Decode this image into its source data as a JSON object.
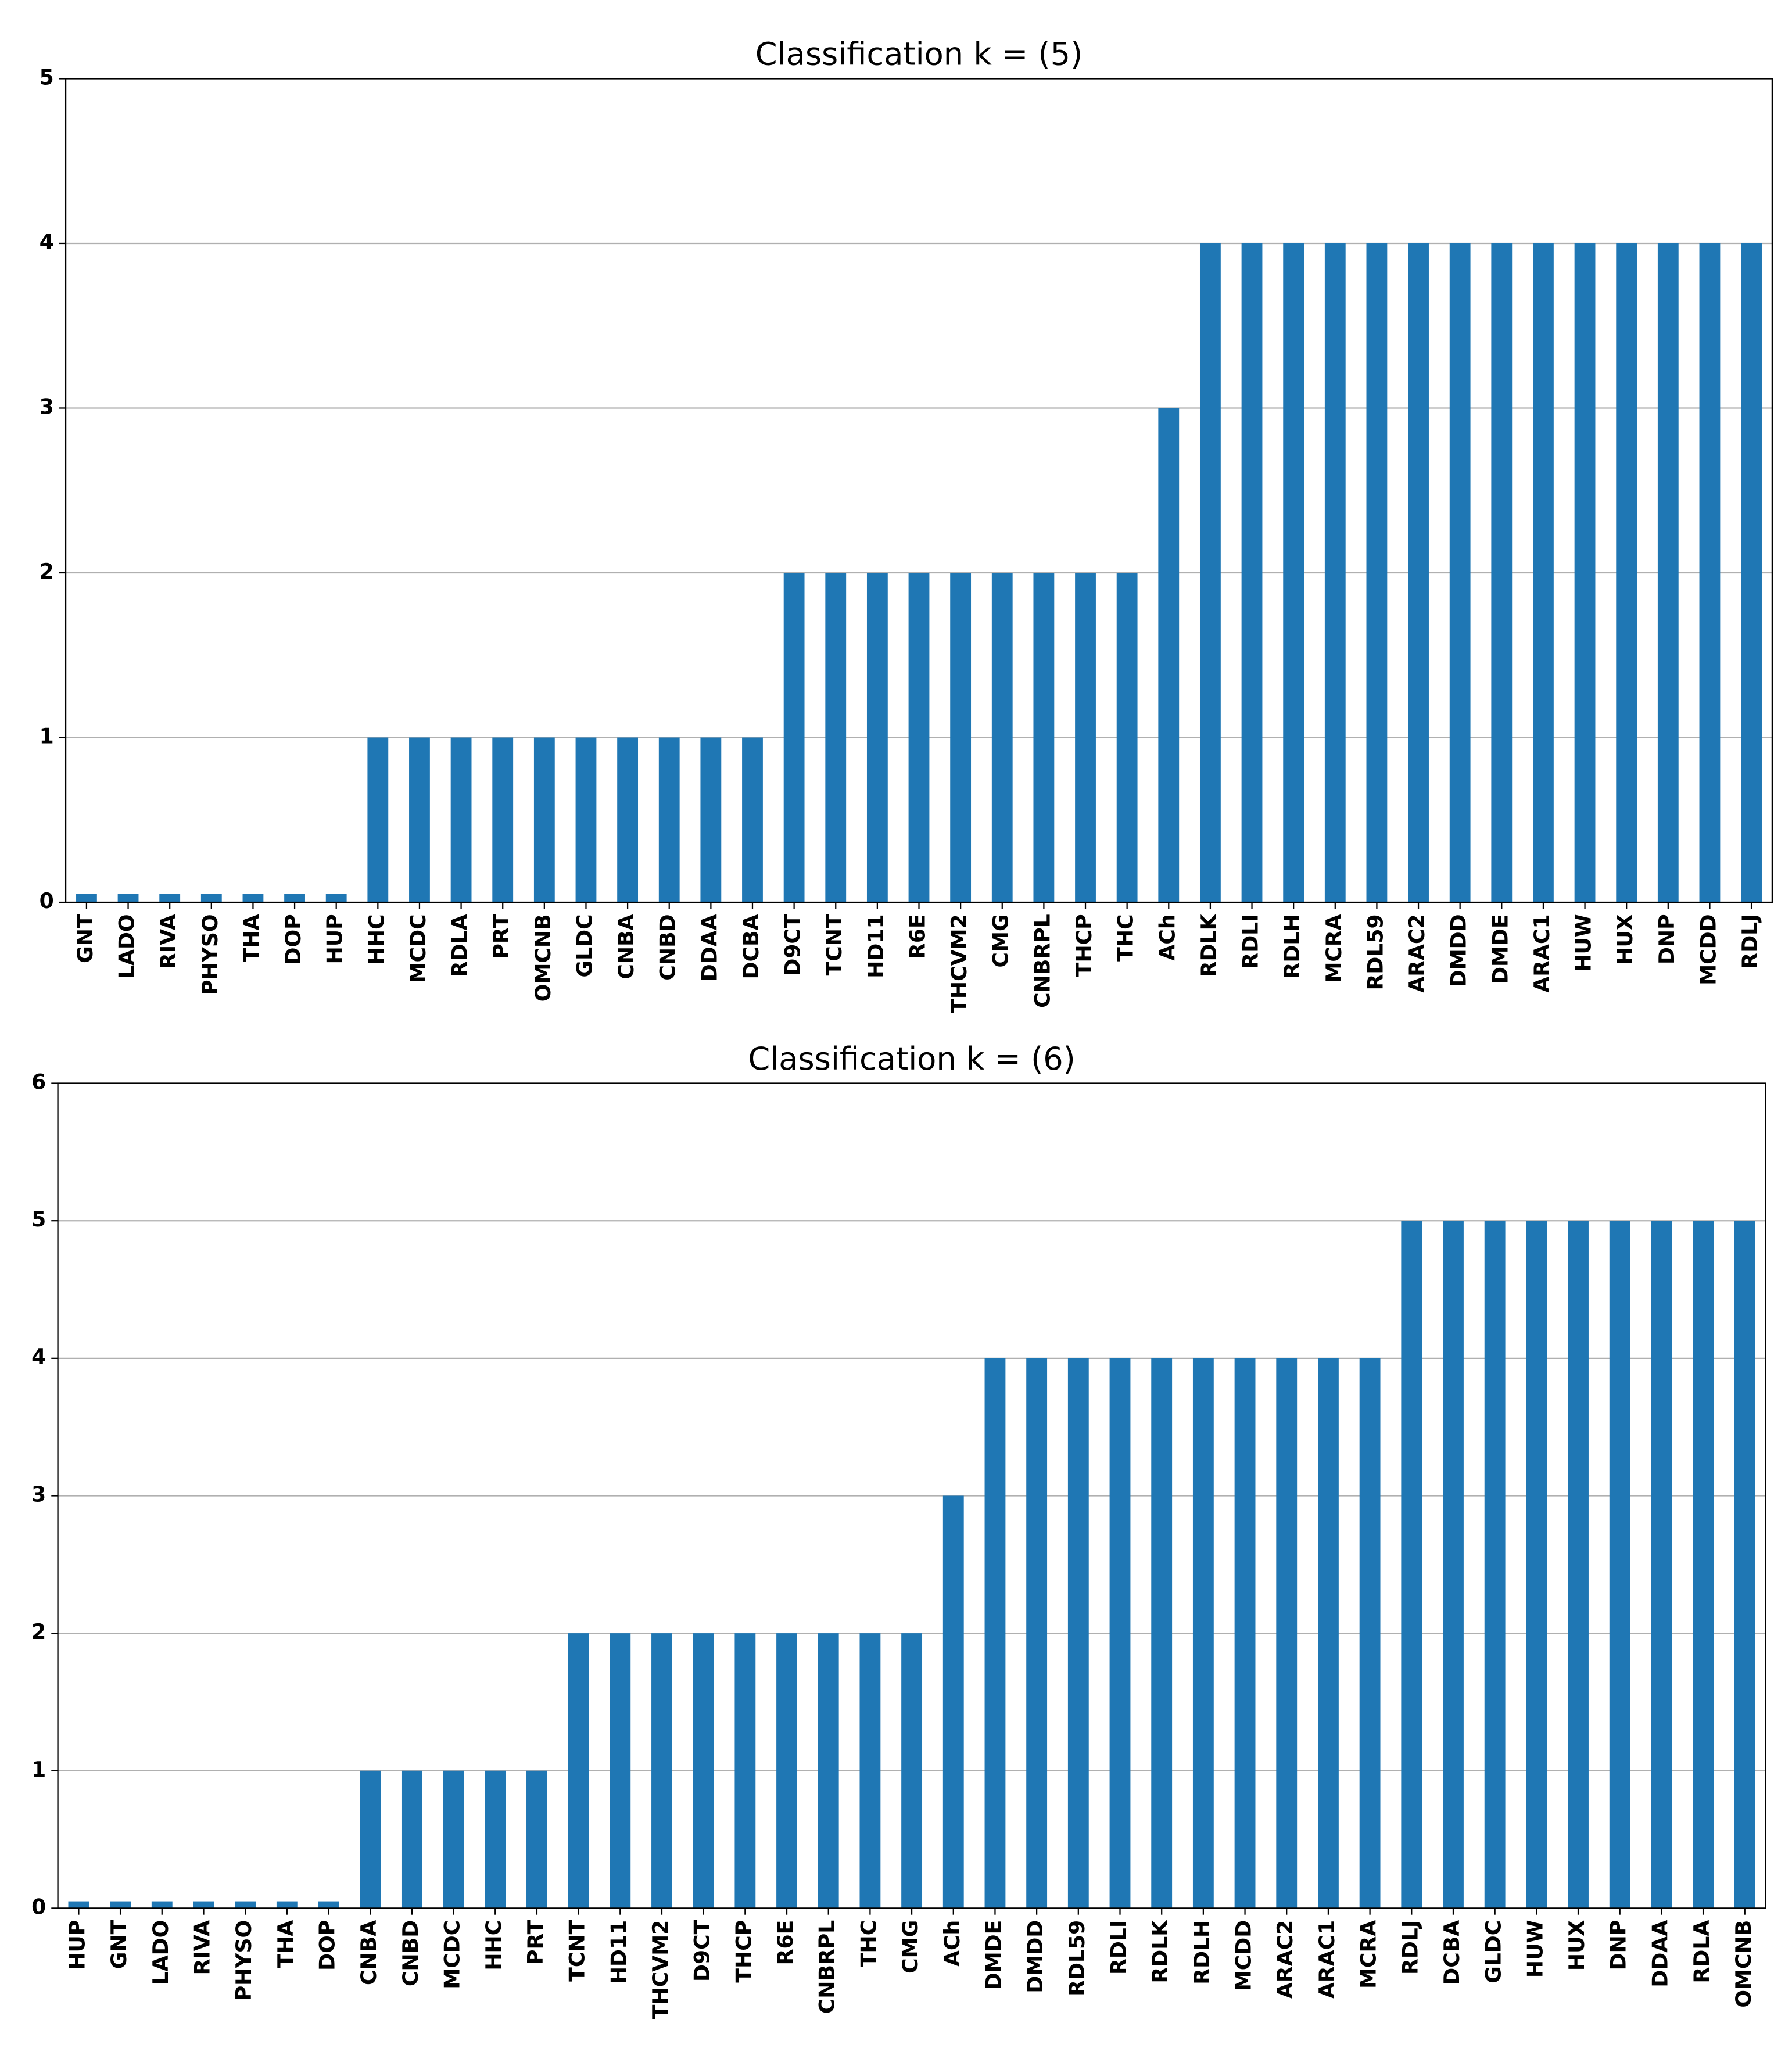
{
  "chart_data": [
    {
      "type": "bar",
      "title": "Classification k = (5)",
      "color": "#1f77b4",
      "grid": true,
      "categories": [
        "GNT",
        "LADO",
        "RIVA",
        "PHYSO",
        "THA",
        "DOP",
        "HUP",
        "HHC",
        "MCDC",
        "RDLA",
        "PRT",
        "OMCNB",
        "GLDC",
        "CNBA",
        "CNBD",
        "DDAA",
        "DCBA",
        "D9CT",
        "TCNT",
        "HD11",
        "R6E",
        "THCVM2",
        "CMG",
        "CNBRPL",
        "THCP",
        "THC",
        "ACh",
        "RDLK",
        "RDLI",
        "RDLH",
        "MCRA",
        "RDL59",
        "ARAC2",
        "DMDD",
        "DMDE",
        "ARAC1",
        "HUW",
        "HUX",
        "DNP",
        "MCDD",
        "RDLJ"
      ],
      "values": [
        0.05,
        0.05,
        0.05,
        0.05,
        0.05,
        0.05,
        0.05,
        1,
        1,
        1,
        1,
        1,
        1,
        1,
        1,
        1,
        1,
        2,
        2,
        2,
        2,
        2,
        2,
        2,
        2,
        2,
        3,
        4,
        4,
        4,
        4,
        4,
        4,
        4,
        4,
        4,
        4,
        4,
        4,
        4,
        4
      ],
      "ylim": [
        0,
        5
      ],
      "yticks": [
        0,
        1,
        2,
        3,
        4,
        5
      ]
    },
    {
      "type": "bar",
      "title": "Classification k = (6)",
      "color": "#1f77b4",
      "grid": true,
      "categories": [
        "HUP",
        "GNT",
        "LADO",
        "RIVA",
        "PHYSO",
        "THA",
        "DOP",
        "CNBA",
        "CNBD",
        "MCDC",
        "HHC",
        "PRT",
        "TCNT",
        "HD11",
        "THCVM2",
        "D9CT",
        "THCP",
        "R6E",
        "CNBRPL",
        "THC",
        "CMG",
        "ACh",
        "DMDE",
        "DMDD",
        "RDL59",
        "RDLI",
        "RDLK",
        "RDLH",
        "MCDD",
        "ARAC2",
        "ARAC1",
        "MCRA",
        "RDLJ",
        "DCBA",
        "GLDC",
        "HUW",
        "HUX",
        "DNP",
        "DDAA",
        "RDLA",
        "OMCNB"
      ],
      "values": [
        0.05,
        0.05,
        0.05,
        0.05,
        0.05,
        0.05,
        0.05,
        1,
        1,
        1,
        1,
        1,
        2,
        2,
        2,
        2,
        2,
        2,
        2,
        2,
        2,
        3,
        4,
        4,
        4,
        4,
        4,
        4,
        4,
        4,
        4,
        4,
        5,
        5,
        5,
        5,
        5,
        5,
        5,
        5,
        5
      ],
      "ylim": [
        0,
        6
      ],
      "yticks": [
        0,
        1,
        2,
        3,
        4,
        5,
        6
      ]
    }
  ]
}
